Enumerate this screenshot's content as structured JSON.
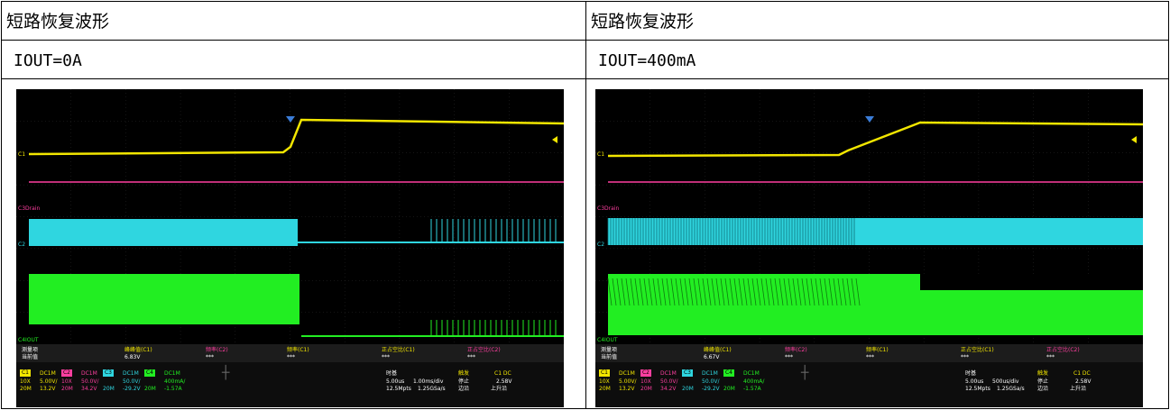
{
  "left": {
    "title": "短路恢复波形",
    "condition": "IOUT=0A",
    "scope": {
      "ch_labels": {
        "c1": "C1",
        "c3": "C3Drain",
        "c2": "C2",
        "c4": "C4IOUT"
      },
      "measure": {
        "row_label": "测量项",
        "cur_label": "当前值",
        "items": [
          "峰峰值(C1)",
          "频率(C2)",
          "频率(C1)",
          "正占空比(C1)",
          "正占空比(C2)"
        ],
        "values": [
          "6.83V",
          "***",
          "***",
          "***",
          "***"
        ]
      },
      "channels": [
        {
          "name": "C1",
          "coupling": "DC1M",
          "probe": "10X",
          "scale": "5.00V/",
          "bw": "20M",
          "offset": "13.2V"
        },
        {
          "name": "C2",
          "coupling": "DC1M",
          "probe": "10X",
          "scale": "50.0V/",
          "bw": "20M",
          "offset": "34.2V"
        },
        {
          "name": "C3",
          "coupling": "DC1M",
          "probe": "",
          "scale": "50.0V/",
          "bw": "20M",
          "offset": "-29.2V"
        },
        {
          "name": "C4",
          "coupling": "DC1M",
          "probe": "",
          "scale": "400mA/",
          "bw": "20M",
          "offset": "-1.57A"
        }
      ],
      "timebase": {
        "label": "时基",
        "delay": "5.00us",
        "div": "1.00ms/div",
        "mem": "12.5Mpts",
        "rate": "1.25GSa/s"
      },
      "trigger": {
        "label": "触发",
        "src": "C1 DC",
        "state": "停止",
        "level": "2.58V",
        "type": "边沿",
        "slope": "上升沿"
      }
    }
  },
  "right": {
    "title": "短路恢复波形",
    "condition": "IOUT=400mA",
    "scope": {
      "ch_labels": {
        "c1": "C1",
        "c3": "C3Drain",
        "c2": "C2",
        "c4": "C4IOUT"
      },
      "measure": {
        "row_label": "测量项",
        "cur_label": "当前值",
        "items": [
          "峰峰值(C1)",
          "频率(C2)",
          "频率(C1)",
          "正占空比(C1)",
          "正占空比(C2)"
        ],
        "values": [
          "6.67V",
          "***",
          "***",
          "***",
          "***"
        ]
      },
      "channels": [
        {
          "name": "C1",
          "coupling": "DC1M",
          "probe": "10X",
          "scale": "5.00V/",
          "bw": "20M",
          "offset": "13.2V"
        },
        {
          "name": "C2",
          "coupling": "DC1M",
          "probe": "10X",
          "scale": "50.0V/",
          "bw": "20M",
          "offset": "34.2V"
        },
        {
          "name": "C3",
          "coupling": "DC1M",
          "probe": "",
          "scale": "50.0V/",
          "bw": "20M",
          "offset": "-29.2V"
        },
        {
          "name": "C4",
          "coupling": "DC1M",
          "probe": "",
          "scale": "400mA/",
          "bw": "20M",
          "offset": "-1.57A"
        }
      ],
      "timebase": {
        "label": "时基",
        "delay": "5.00us",
        "div": "500us/div",
        "mem": "12.5Mpts",
        "rate": "1.25GSa/s"
      },
      "trigger": {
        "label": "触发",
        "src": "C1 DC",
        "state": "停止",
        "level": "2.58V",
        "type": "边沿",
        "slope": "上升沿"
      }
    }
  },
  "colors": {
    "c1": "#f2e600",
    "c2": "#ff3fa0",
    "c3": "#2fd6e0",
    "c4": "#22ee22"
  }
}
